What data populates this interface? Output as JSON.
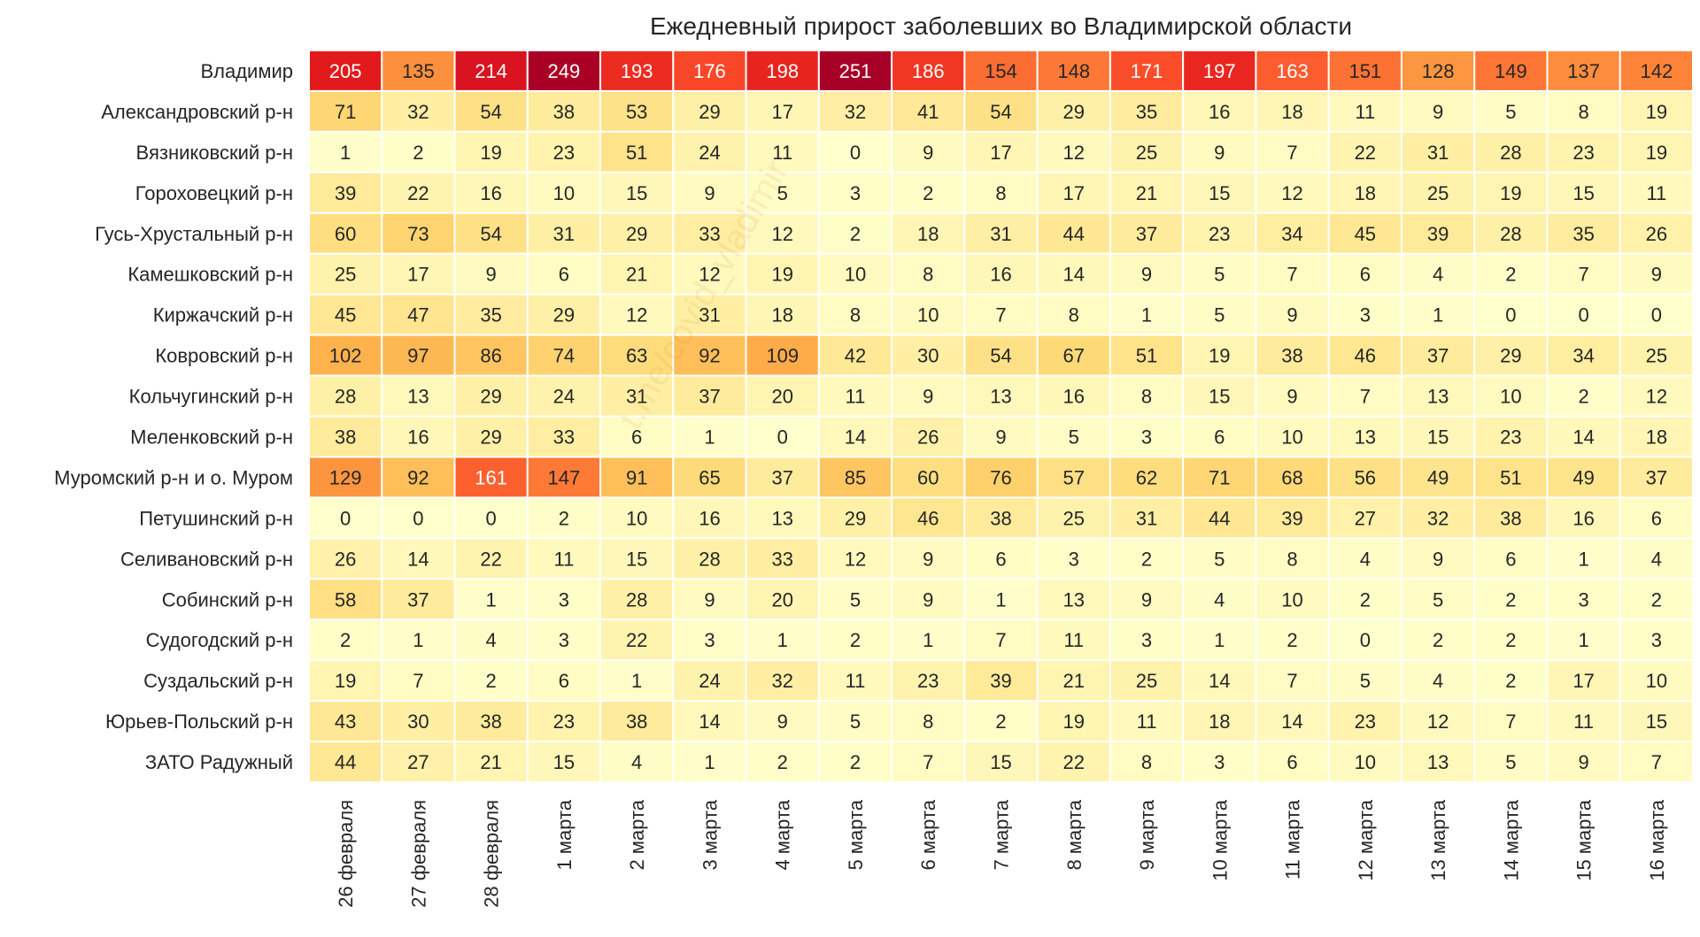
{
  "chart_data": {
    "type": "heatmap",
    "title": "Ежедневный прирост заболевших во Владимирской области",
    "watermark": "t.me/covid_vladimir",
    "colormap": "YlOrRd",
    "vmin": 0,
    "vmax": 251,
    "columns": [
      "26 февраля",
      "27 февраля",
      "28 февраля",
      "1 марта",
      "2 марта",
      "3 марта",
      "4 марта",
      "5 марта",
      "6 марта",
      "7 марта",
      "8 марта",
      "9 марта",
      "10 марта",
      "11 марта",
      "12 марта",
      "13 марта",
      "14 марта",
      "15 марта",
      "16 марта"
    ],
    "rows": [
      "Владимир",
      "Александровский р-н",
      "Вязниковский р-н",
      "Гороховецкий р-н",
      "Гусь-Хрустальный р-н",
      "Камешковский р-н",
      "Киржачский р-н",
      "Ковровский р-н",
      "Кольчугинский р-н",
      "Меленковский р-н",
      "Муромский р-н и о. Муром",
      "Петушинский р-н",
      "Селивановский р-н",
      "Собинский р-н",
      "Судогодский р-н",
      "Суздальский р-н",
      "Юрьев-Польский р-н",
      "ЗАТО Радужный"
    ],
    "values": [
      [
        205,
        135,
        214,
        249,
        193,
        176,
        198,
        251,
        186,
        154,
        148,
        171,
        197,
        163,
        151,
        128,
        149,
        137,
        142
      ],
      [
        71,
        32,
        54,
        38,
        53,
        29,
        17,
        32,
        41,
        54,
        29,
        35,
        16,
        18,
        11,
        9,
        5,
        8,
        19
      ],
      [
        1,
        2,
        19,
        23,
        51,
        24,
        11,
        0,
        9,
        17,
        12,
        25,
        9,
        7,
        22,
        31,
        28,
        23,
        19
      ],
      [
        39,
        22,
        16,
        10,
        15,
        9,
        5,
        3,
        2,
        8,
        17,
        21,
        15,
        12,
        18,
        25,
        19,
        15,
        11
      ],
      [
        60,
        73,
        54,
        31,
        29,
        33,
        12,
        2,
        18,
        31,
        44,
        37,
        23,
        34,
        45,
        39,
        28,
        35,
        26
      ],
      [
        25,
        17,
        9,
        6,
        21,
        12,
        19,
        10,
        8,
        16,
        14,
        9,
        5,
        7,
        6,
        4,
        2,
        7,
        9
      ],
      [
        45,
        47,
        35,
        29,
        12,
        31,
        18,
        8,
        10,
        7,
        8,
        1,
        5,
        9,
        3,
        1,
        0,
        0,
        0
      ],
      [
        102,
        97,
        86,
        74,
        63,
        92,
        109,
        42,
        30,
        54,
        67,
        51,
        19,
        38,
        46,
        37,
        29,
        34,
        25
      ],
      [
        28,
        13,
        29,
        24,
        31,
        37,
        20,
        11,
        9,
        13,
        16,
        8,
        15,
        9,
        7,
        13,
        10,
        2,
        12
      ],
      [
        38,
        16,
        29,
        33,
        6,
        1,
        0,
        14,
        26,
        9,
        5,
        3,
        6,
        10,
        13,
        15,
        23,
        14,
        18
      ],
      [
        129,
        92,
        161,
        147,
        91,
        65,
        37,
        85,
        60,
        76,
        57,
        62,
        71,
        68,
        56,
        49,
        51,
        49,
        37
      ],
      [
        0,
        0,
        0,
        2,
        10,
        16,
        13,
        29,
        46,
        38,
        25,
        31,
        44,
        39,
        27,
        32,
        38,
        16,
        6
      ],
      [
        26,
        14,
        22,
        11,
        15,
        28,
        33,
        12,
        9,
        6,
        3,
        2,
        5,
        8,
        4,
        9,
        6,
        1,
        4
      ],
      [
        58,
        37,
        1,
        3,
        28,
        9,
        20,
        5,
        9,
        1,
        13,
        9,
        4,
        10,
        2,
        5,
        2,
        3,
        2
      ],
      [
        2,
        1,
        4,
        3,
        22,
        3,
        1,
        2,
        1,
        7,
        11,
        3,
        1,
        2,
        0,
        2,
        2,
        1,
        3
      ],
      [
        19,
        7,
        2,
        6,
        1,
        24,
        32,
        11,
        23,
        39,
        21,
        25,
        14,
        7,
        5,
        4,
        2,
        17,
        10
      ],
      [
        43,
        30,
        38,
        23,
        38,
        14,
        9,
        5,
        8,
        2,
        19,
        11,
        18,
        14,
        23,
        12,
        7,
        11,
        15
      ],
      [
        44,
        27,
        21,
        15,
        4,
        1,
        2,
        2,
        7,
        15,
        22,
        8,
        3,
        6,
        10,
        13,
        5,
        9,
        7
      ]
    ]
  }
}
